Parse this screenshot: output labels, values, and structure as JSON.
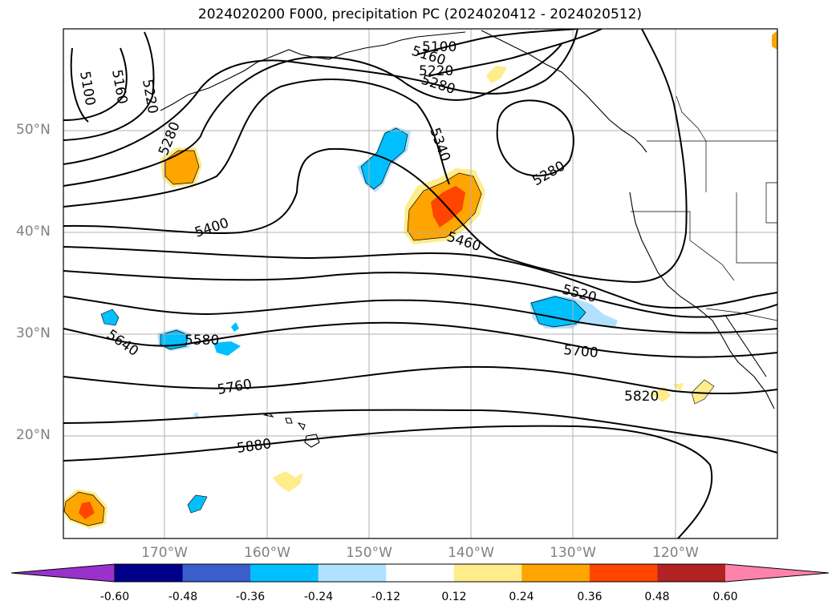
{
  "title": "2024020200 F000, precipitation PC (2024020412 - 2024020512)",
  "lat_labels": [
    "50°N",
    "40°N",
    "30°N",
    "20°N"
  ],
  "lon_labels": [
    "170°W",
    "160°W",
    "150°W",
    "140°W",
    "130°W",
    "120°W"
  ],
  "contour_labels": [
    "5100",
    "5160",
    "5220",
    "5280",
    "5100",
    "5160",
    "5220",
    "5280",
    "5340",
    "5280",
    "5400",
    "5460",
    "5520",
    "5580",
    "5640",
    "5700",
    "5760",
    "5820",
    "5880"
  ],
  "colorbar": {
    "ticks": [
      "-0.60",
      "-0.48",
      "-0.36",
      "-0.24",
      "-0.12",
      "0.12",
      "0.24",
      "0.36",
      "0.48",
      "0.60"
    ],
    "colors": [
      "#9932CC",
      "#00008B",
      "#3A5FCD",
      "#00BFFF",
      "#B0E2FF",
      "#FFFFFF",
      "#FFEC8B",
      "#FFA500",
      "#FF4500",
      "#B22222",
      "#FF82AB"
    ]
  }
}
